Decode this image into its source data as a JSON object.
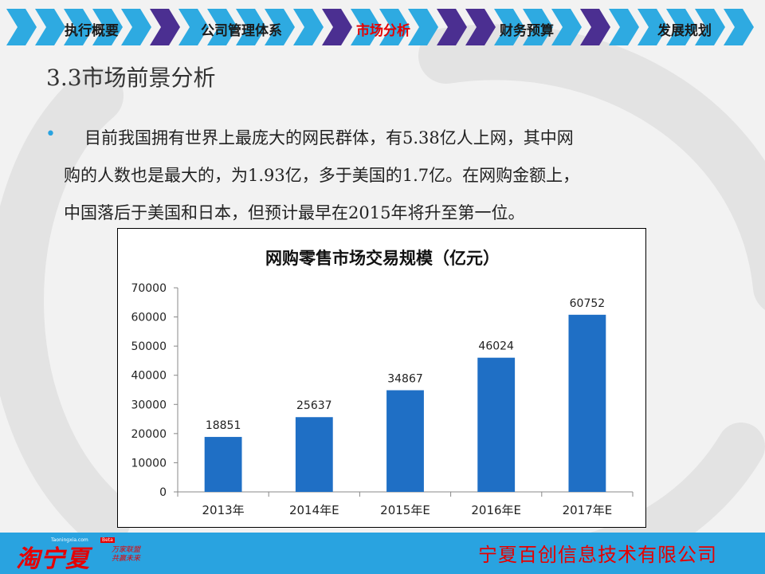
{
  "nav": {
    "items": [
      {
        "label": "执行概要",
        "active": false
      },
      {
        "label": "公司管理体系",
        "active": false
      },
      {
        "label": "市场分析",
        "active": true
      },
      {
        "label": "财务预算",
        "active": false
      },
      {
        "label": "发展规划",
        "active": false
      }
    ],
    "colors": {
      "chevron_light": "#2eaae1",
      "chevron_dark": "#4b2f91",
      "active_text": "#e60000"
    }
  },
  "page_title": "3.3市场前景分析",
  "bullet": {
    "lines": [
      "目前我国拥有世界上最庞大的网民群体，有5.38亿人上网，其中网",
      "购的人数也是最大的，为1.93亿，多于美国的1.7亿。在网购金额上，",
      "中国落后于美国和日本，但预计最早在2015年将升至第一位。"
    ]
  },
  "chart_data": {
    "type": "bar",
    "title": "网购零售市场交易规模（亿元）",
    "categories": [
      "2013年",
      "2014年E",
      "2015年E",
      "2016年E",
      "2017年E"
    ],
    "values": [
      18851,
      25637,
      34867,
      46024,
      60752
    ],
    "data_labels": [
      "18851",
      "25637",
      "34867",
      "46024",
      "60752"
    ],
    "ylim": [
      0,
      70000
    ],
    "yticks": [
      "0",
      "10000",
      "20000",
      "30000",
      "40000",
      "50000",
      "60000",
      "70000"
    ],
    "bar_color": "#1f6fc5",
    "grid": false,
    "legend": "none"
  },
  "footer": {
    "logo_text": "淘宁夏",
    "logo_url": "Taoningxia.com",
    "logo_badge": "Beta",
    "logo_slogan_1": "万家联盟",
    "logo_slogan_2": "共赢未来",
    "company": "宁夏百创信息技术有限公司",
    "bar_color": "#29a3e0"
  }
}
